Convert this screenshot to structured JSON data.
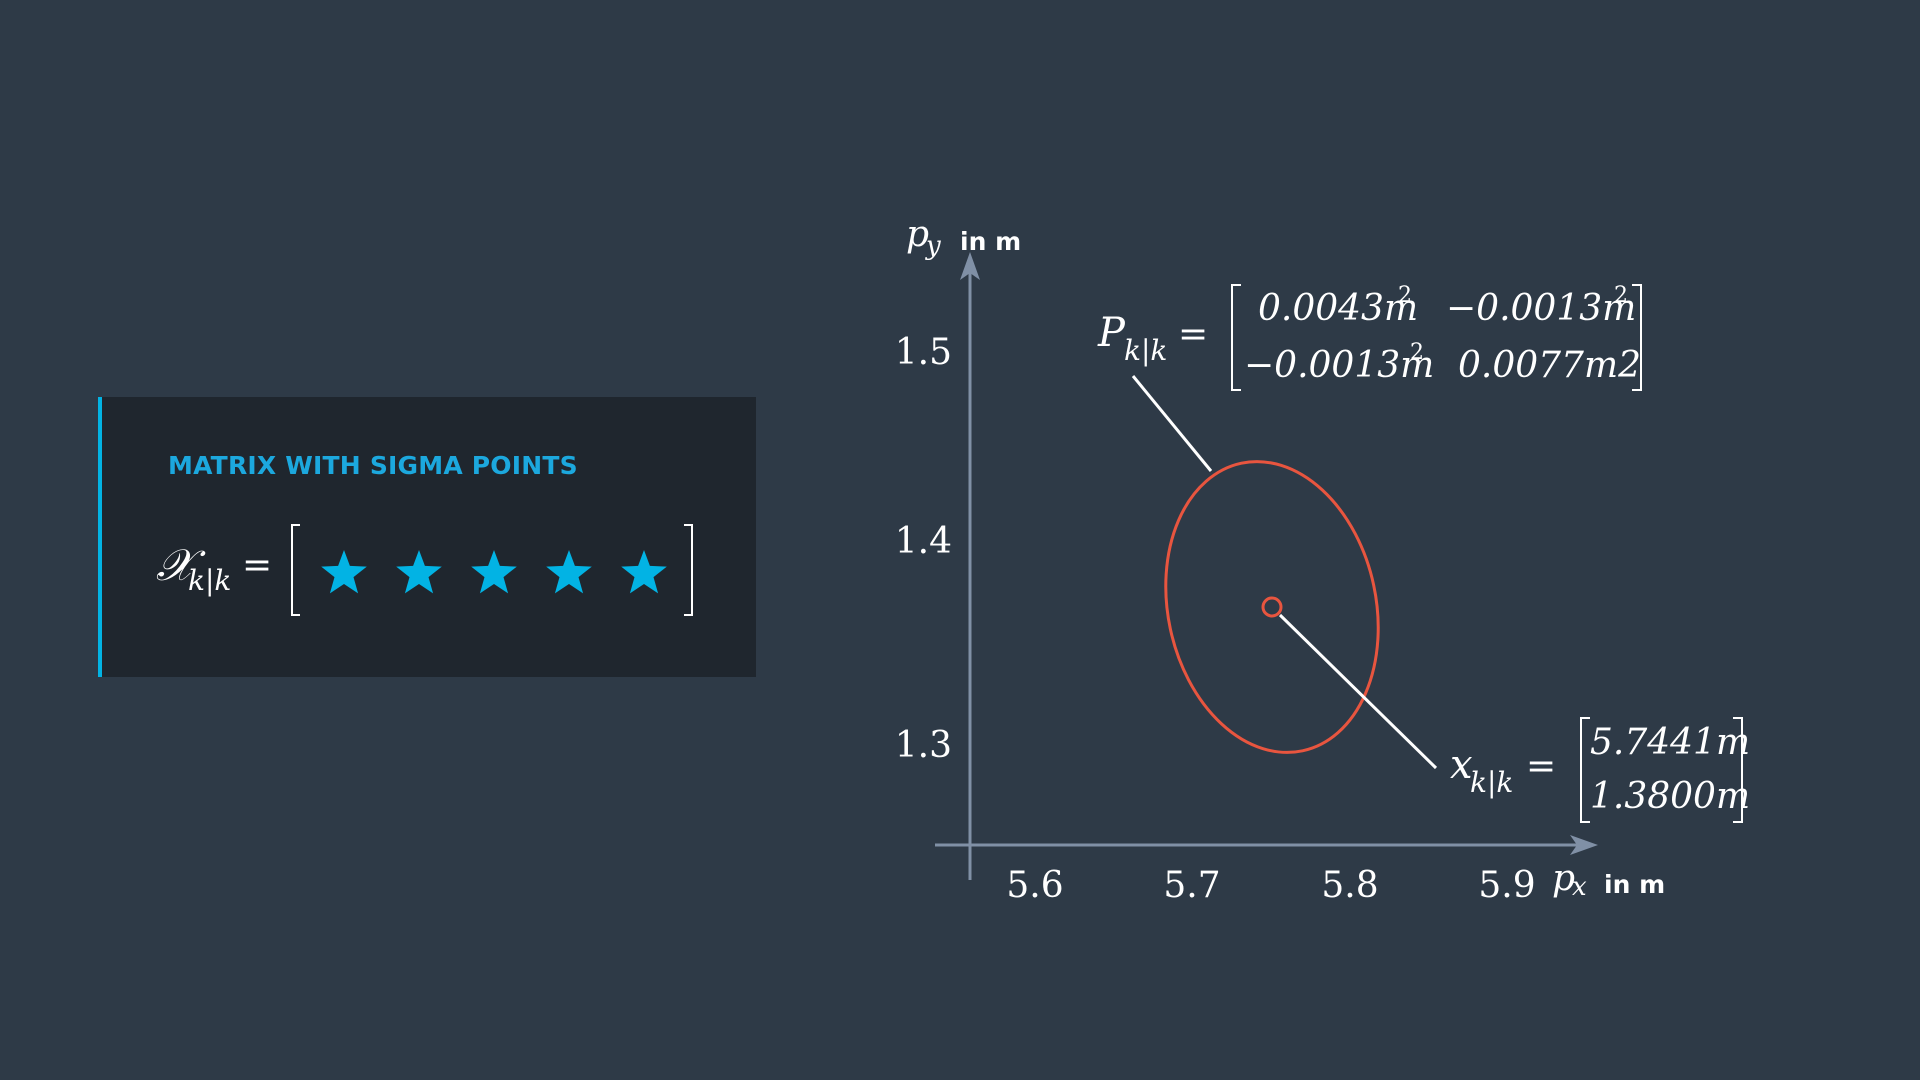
{
  "card": {
    "title": "MATRIX WITH SIGMA POINTS",
    "formula_symbol": "𝒳",
    "formula_subscript": "k|k",
    "equals": "=",
    "stars": [
      "star",
      "star",
      "star",
      "star",
      "star"
    ],
    "accent_color": "#02b3e4",
    "star_color": "#02b3e4"
  },
  "plot": {
    "y_label": "p",
    "y_label_sub": "y",
    "y_unit": "in m",
    "x_label": "p",
    "x_label_sub": "x",
    "x_unit": "in m",
    "x_ticks": [
      "5.6",
      "5.7",
      "5.8",
      "5.9"
    ],
    "y_ticks": [
      "1.5",
      "1.4",
      "1.3"
    ],
    "axis_color": "#8090a6",
    "ellipse_color": "#e8553f"
  },
  "covariance": {
    "symbol": "P",
    "subscript": "k|k",
    "equals": "=",
    "m11": "0.0043m",
    "m11_exp": "2",
    "m12": "−0.0013m",
    "m12_exp": "2",
    "m21": "−0.0013m",
    "m21_exp": "2",
    "m22": "0.0077m2"
  },
  "state": {
    "symbol": "x",
    "subscript": "k|k",
    "equals": "=",
    "v1": "5.7441m",
    "v2": "1.3800m"
  }
}
